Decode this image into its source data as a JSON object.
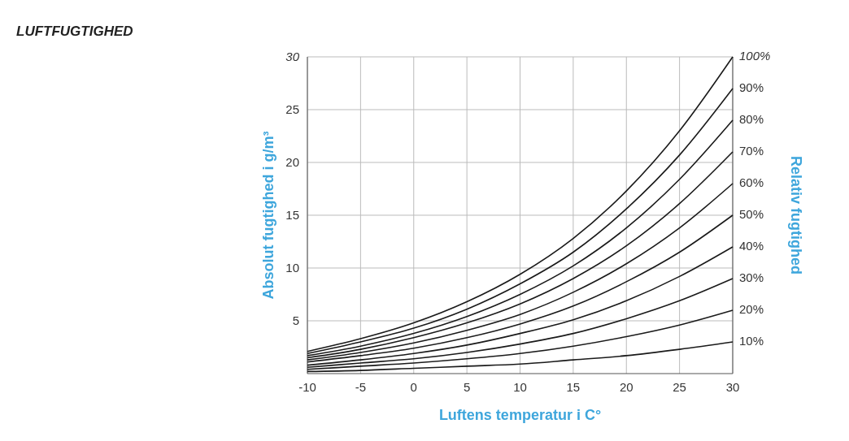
{
  "chart_data": {
    "type": "line",
    "title": "LUFTFUGTIGHED",
    "xlabel": "Luftens temperatur i C°",
    "ylabel": "Absolut fugtighed i g/m³",
    "y2label": "Relativ fugtighed",
    "x": [
      -10,
      -5,
      0,
      5,
      10,
      15,
      20,
      25,
      30
    ],
    "xlim": [
      -10,
      30
    ],
    "xticks": [
      -10,
      -5,
      0,
      5,
      10,
      15,
      20,
      25,
      30
    ],
    "ylim": [
      0,
      30
    ],
    "yticks": [
      5,
      10,
      15,
      20,
      25,
      30
    ],
    "grid": true,
    "marker": "none",
    "line_style": "solid",
    "series": [
      {
        "name": "10%",
        "color": "#1a1a1a",
        "values": [
          0.2,
          0.3,
          0.5,
          0.7,
          0.9,
          1.3,
          1.7,
          2.3,
          3.0
        ]
      },
      {
        "name": "20%",
        "color": "#1a1a1a",
        "values": [
          0.4,
          0.7,
          1.0,
          1.4,
          1.9,
          2.6,
          3.5,
          4.6,
          6.0
        ]
      },
      {
        "name": "30%",
        "color": "#1a1a1a",
        "values": [
          0.6,
          1.0,
          1.4,
          2.0,
          2.8,
          3.8,
          5.2,
          6.9,
          9.0
        ]
      },
      {
        "name": "40%",
        "color": "#1a1a1a",
        "values": [
          0.8,
          1.3,
          1.9,
          2.7,
          3.8,
          5.1,
          6.9,
          9.2,
          12.0
        ]
      },
      {
        "name": "50%",
        "color": "#1a1a1a",
        "values": [
          1.1,
          1.7,
          2.4,
          3.4,
          4.7,
          6.4,
          8.7,
          11.5,
          15.0
        ]
      },
      {
        "name": "60%",
        "color": "#1a1a1a",
        "values": [
          1.3,
          2.0,
          2.9,
          4.1,
          5.6,
          7.7,
          10.4,
          13.8,
          18.0
        ]
      },
      {
        "name": "70%",
        "color": "#1a1a1a",
        "values": [
          1.5,
          2.3,
          3.4,
          4.8,
          6.6,
          9.0,
          12.1,
          16.1,
          21.0
        ]
      },
      {
        "name": "80%",
        "color": "#1a1a1a",
        "values": [
          1.7,
          2.6,
          3.8,
          5.4,
          7.5,
          10.2,
          13.8,
          18.4,
          24.0
        ]
      },
      {
        "name": "90%",
        "color": "#1a1a1a",
        "values": [
          1.9,
          3.0,
          4.3,
          6.1,
          8.5,
          11.5,
          15.6,
          20.7,
          27.0
        ]
      },
      {
        "name": "100%",
        "color": "#1a1a1a",
        "values": [
          2.1,
          3.3,
          4.8,
          6.8,
          9.4,
          12.8,
          17.3,
          23.0,
          30.0
        ]
      }
    ]
  }
}
